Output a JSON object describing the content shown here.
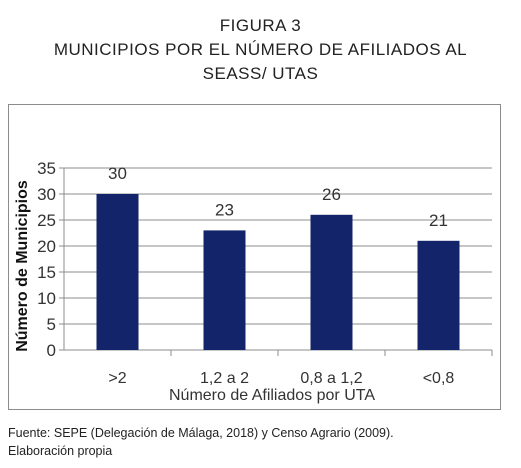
{
  "figure": {
    "label": "FIGURA 3",
    "title_line1": "MUNICIPIOS POR EL NÚMERO DE AFILIADOS AL",
    "title_line2": "SEASS/ UTAS"
  },
  "source": {
    "line1": "Fuente: SEPE (Delegación de Málaga, 2018) y Censo Agrario (2009).",
    "line2": "Elaboración propia"
  },
  "colors": {
    "bar": "#14246a",
    "axis": "#8c8c8c",
    "grid": "#8c8c8c"
  },
  "chart_data": {
    "type": "bar",
    "categories": [
      ">2",
      "1,2 a 2",
      "0,8 a 1,2",
      "<0,8"
    ],
    "values": [
      30,
      23,
      26,
      21
    ],
    "data_labels": [
      "30",
      "23",
      "26",
      "21"
    ],
    "xlabel": "Número de Afiliados por UTA",
    "ylabel": "Número de Municipios",
    "ylim": [
      0,
      35
    ],
    "yticks": [
      "0",
      "5",
      "10",
      "15",
      "20",
      "25",
      "30",
      "35"
    ],
    "grid": true,
    "legend": "none"
  }
}
